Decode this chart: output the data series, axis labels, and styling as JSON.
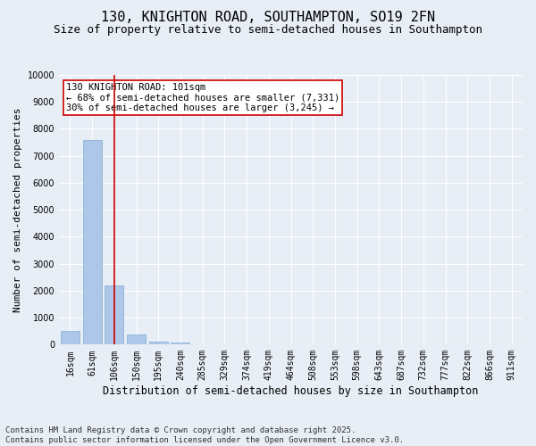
{
  "title": "130, KNIGHTON ROAD, SOUTHAMPTON, SO19 2FN",
  "subtitle": "Size of property relative to semi-detached houses in Southampton",
  "xlabel": "Distribution of semi-detached houses by size in Southampton",
  "ylabel": "Number of semi-detached properties",
  "categories": [
    "16sqm",
    "61sqm",
    "106sqm",
    "150sqm",
    "195sqm",
    "240sqm",
    "285sqm",
    "329sqm",
    "374sqm",
    "419sqm",
    "464sqm",
    "508sqm",
    "553sqm",
    "598sqm",
    "643sqm",
    "687sqm",
    "732sqm",
    "777sqm",
    "822sqm",
    "866sqm",
    "911sqm"
  ],
  "values": [
    500,
    7600,
    2200,
    380,
    120,
    80,
    10,
    0,
    0,
    0,
    0,
    0,
    0,
    0,
    0,
    0,
    0,
    0,
    0,
    0,
    0
  ],
  "bar_color": "#aec6e8",
  "bar_edge_color": "#7aafd4",
  "vline_x_index": 2,
  "vline_color": "#cc0000",
  "annotation_text": "130 KNIGHTON ROAD: 101sqm\n← 68% of semi-detached houses are smaller (7,331)\n30% of semi-detached houses are larger (3,245) →",
  "annotation_box_color": "#ffffff",
  "annotation_box_edge_color": "#cc0000",
  "ylim": [
    0,
    10000
  ],
  "yticks": [
    0,
    1000,
    2000,
    3000,
    4000,
    5000,
    6000,
    7000,
    8000,
    9000,
    10000
  ],
  "bg_color": "#e8eef5",
  "plot_bg_color": "#e8eef5",
  "grid_color": "#ffffff",
  "footnote": "Contains HM Land Registry data © Crown copyright and database right 2025.\nContains public sector information licensed under the Open Government Licence v3.0.",
  "title_fontsize": 11,
  "subtitle_fontsize": 9,
  "xlabel_fontsize": 8.5,
  "ylabel_fontsize": 8,
  "tick_fontsize": 7,
  "annotation_fontsize": 7.5,
  "footnote_fontsize": 6.5
}
